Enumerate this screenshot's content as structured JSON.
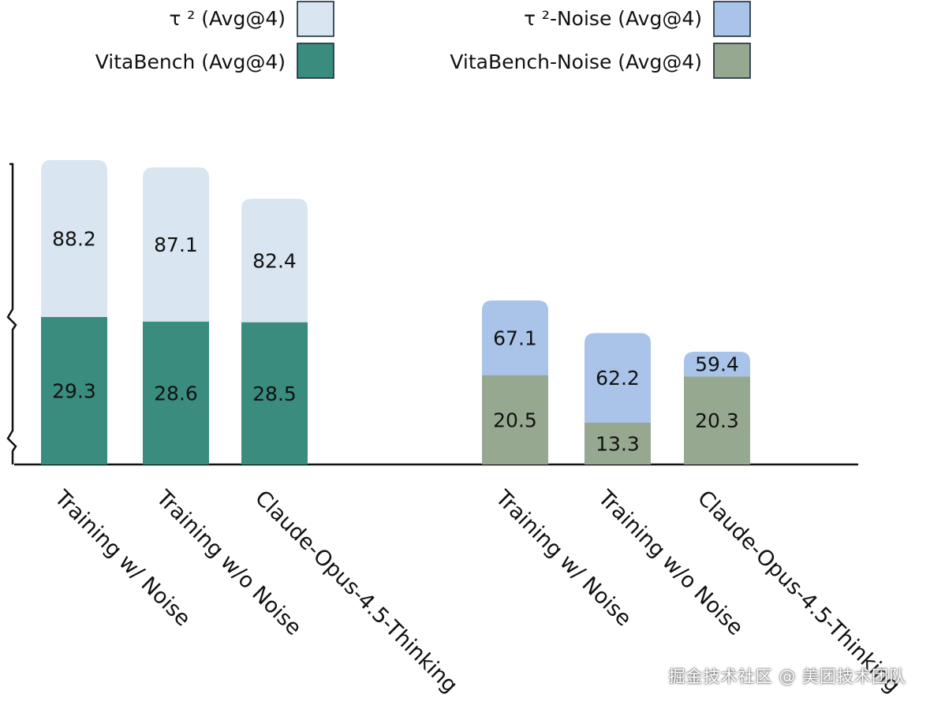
{
  "chart_data": {
    "type": "bar",
    "stacked": true,
    "categories": [
      "Training w/ Noise",
      "Training w/o Noise",
      "Claude-Opus-4.5-Thinking",
      "Training w/ Noise",
      "Training w/o Noise",
      "Claude-Opus-4.5-Thinking"
    ],
    "groups": [
      {
        "categories": [
          "Training w/ Noise",
          "Training w/o Noise",
          "Claude-Opus-4.5-Thinking"
        ],
        "series": [
          {
            "name": "VitaBench (Avg@4)",
            "values": [
              29.3,
              28.6,
              28.5
            ],
            "color": "#3a8c7e"
          },
          {
            "name": "τ ² (Avg@4)",
            "values": [
              88.2,
              87.1,
              82.4
            ],
            "color": "#d9e6f2"
          }
        ]
      },
      {
        "categories": [
          "Training w/ Noise",
          "Training w/o Noise",
          "Claude-Opus-4.5-Thinking"
        ],
        "series": [
          {
            "name": "VitaBench-Noise (Avg@4)",
            "values": [
              20.5,
              13.3,
              20.3
            ],
            "color": "#97a891"
          },
          {
            "name": "τ ²-Noise (Avg@4)",
            "values": [
              67.1,
              62.2,
              59.4
            ],
            "color": "#a9c4e8"
          }
        ]
      }
    ],
    "legend": [
      {
        "name": "τ ² (Avg@4)",
        "color": "#d9e6f2"
      },
      {
        "name": "τ ²-Noise (Avg@4)",
        "color": "#a9c4e8"
      },
      {
        "name": "VitaBench (Avg@4)",
        "color": "#3a8c7e"
      },
      {
        "name": "VitaBench-Noise (Avg@4)",
        "color": "#97a891"
      }
    ],
    "legend_position": "top",
    "axis_break": true,
    "grid": false
  },
  "watermark": "掘金技术社区 @ 美团技术团队"
}
